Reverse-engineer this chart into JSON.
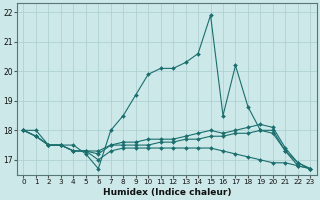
{
  "xlabel": "Humidex (Indice chaleur)",
  "background_color": "#cce8e8",
  "grid_color": "#aacece",
  "line_color": "#1a6e6e",
  "xlim": [
    -0.5,
    23.5
  ],
  "ylim": [
    16.5,
    22.3
  ],
  "yticks": [
    17,
    18,
    19,
    20,
    21,
    22
  ],
  "xticks": [
    0,
    1,
    2,
    3,
    4,
    5,
    6,
    7,
    8,
    9,
    10,
    11,
    12,
    13,
    14,
    15,
    16,
    17,
    18,
    19,
    20,
    21,
    22,
    23
  ],
  "series": [
    [
      18.0,
      18.0,
      17.5,
      17.5,
      17.5,
      17.2,
      16.7,
      18.0,
      18.5,
      19.2,
      19.9,
      20.1,
      20.1,
      20.3,
      20.6,
      21.9,
      18.5,
      20.2,
      18.8,
      18.0,
      17.9,
      17.3,
      16.8,
      16.7
    ],
    [
      18.0,
      17.8,
      17.5,
      17.5,
      17.3,
      17.3,
      17.3,
      17.5,
      17.6,
      17.6,
      17.7,
      17.7,
      17.7,
      17.8,
      17.9,
      18.0,
      17.9,
      18.0,
      18.1,
      18.2,
      18.1,
      17.4,
      16.9,
      16.7
    ],
    [
      18.0,
      17.8,
      17.5,
      17.5,
      17.3,
      17.3,
      17.2,
      17.5,
      17.5,
      17.5,
      17.5,
      17.6,
      17.6,
      17.7,
      17.7,
      17.8,
      17.8,
      17.9,
      17.9,
      18.0,
      18.0,
      17.3,
      16.9,
      16.7
    ],
    [
      18.0,
      17.8,
      17.5,
      17.5,
      17.3,
      17.3,
      17.0,
      17.3,
      17.4,
      17.4,
      17.4,
      17.4,
      17.4,
      17.4,
      17.4,
      17.4,
      17.3,
      17.2,
      17.1,
      17.0,
      16.9,
      16.9,
      16.8,
      16.7
    ]
  ]
}
